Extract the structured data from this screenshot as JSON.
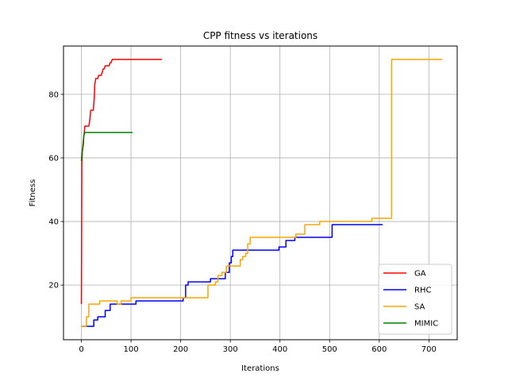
{
  "chart_data": {
    "type": "line",
    "title": "CPP fitness vs iterations",
    "xlabel": "Iterations",
    "ylabel": "Fitness",
    "xlim": [
      -36,
      757
    ],
    "ylim": [
      2.8,
      95.2
    ],
    "xticks": [
      0,
      100,
      200,
      300,
      400,
      500,
      600,
      700
    ],
    "yticks": [
      20,
      40,
      60,
      80
    ],
    "grid": true,
    "legend_position": "lower-right",
    "series": [
      {
        "name": "GA",
        "color": "#ff0000",
        "step": false,
        "points": [
          [
            0,
            14
          ],
          [
            1,
            58
          ],
          [
            2,
            62
          ],
          [
            3,
            63
          ],
          [
            4,
            64
          ],
          [
            5,
            67
          ],
          [
            6,
            68
          ],
          [
            7,
            70
          ],
          [
            15,
            70
          ],
          [
            17,
            72
          ],
          [
            19,
            75
          ],
          [
            24,
            75
          ],
          [
            26,
            79
          ],
          [
            27,
            83
          ],
          [
            29,
            85
          ],
          [
            33,
            85
          ],
          [
            35,
            86
          ],
          [
            40,
            86
          ],
          [
            42,
            87
          ],
          [
            44,
            88
          ],
          [
            46,
            88
          ],
          [
            48,
            89
          ],
          [
            56,
            89
          ],
          [
            58,
            90
          ],
          [
            60,
            90
          ],
          [
            62,
            91
          ],
          [
            162,
            91
          ]
        ]
      },
      {
        "name": "RHC",
        "color": "#0000ff",
        "step": true,
        "points": [
          [
            0,
            7
          ],
          [
            25,
            7
          ],
          [
            25,
            9
          ],
          [
            33,
            9
          ],
          [
            33,
            10
          ],
          [
            48,
            10
          ],
          [
            48,
            12
          ],
          [
            58,
            12
          ],
          [
            58,
            14
          ],
          [
            110,
            14
          ],
          [
            110,
            15
          ],
          [
            205,
            15
          ],
          [
            205,
            16
          ],
          [
            210,
            16
          ],
          [
            210,
            20
          ],
          [
            215,
            20
          ],
          [
            215,
            21
          ],
          [
            260,
            21
          ],
          [
            260,
            22
          ],
          [
            290,
            22
          ],
          [
            290,
            24
          ],
          [
            298,
            24
          ],
          [
            298,
            27
          ],
          [
            302,
            27
          ],
          [
            302,
            29
          ],
          [
            305,
            29
          ],
          [
            305,
            31
          ],
          [
            398,
            31
          ],
          [
            398,
            32
          ],
          [
            412,
            32
          ],
          [
            412,
            34
          ],
          [
            430,
            34
          ],
          [
            430,
            35
          ],
          [
            505,
            35
          ],
          [
            505,
            39
          ],
          [
            607,
            39
          ]
        ]
      },
      {
        "name": "SA",
        "color": "#ffa500",
        "step": true,
        "points": [
          [
            0,
            7
          ],
          [
            10,
            7
          ],
          [
            10,
            10
          ],
          [
            15,
            10
          ],
          [
            15,
            14
          ],
          [
            37,
            14
          ],
          [
            37,
            15
          ],
          [
            72,
            15
          ],
          [
            72,
            14
          ],
          [
            80,
            14
          ],
          [
            80,
            15
          ],
          [
            100,
            15
          ],
          [
            100,
            16
          ],
          [
            255,
            16
          ],
          [
            255,
            20
          ],
          [
            270,
            20
          ],
          [
            270,
            21
          ],
          [
            275,
            21
          ],
          [
            275,
            23
          ],
          [
            283,
            23
          ],
          [
            283,
            24
          ],
          [
            292,
            24
          ],
          [
            292,
            26
          ],
          [
            320,
            26
          ],
          [
            320,
            28
          ],
          [
            325,
            28
          ],
          [
            325,
            29
          ],
          [
            331,
            29
          ],
          [
            331,
            30
          ],
          [
            335,
            30
          ],
          [
            335,
            33
          ],
          [
            340,
            33
          ],
          [
            340,
            35
          ],
          [
            432,
            35
          ],
          [
            432,
            36
          ],
          [
            450,
            36
          ],
          [
            450,
            39
          ],
          [
            480,
            39
          ],
          [
            480,
            40
          ],
          [
            585,
            40
          ],
          [
            585,
            41
          ],
          [
            625,
            41
          ],
          [
            625,
            91
          ],
          [
            727,
            91
          ]
        ]
      },
      {
        "name": "MIMIC",
        "color": "#008000",
        "step": false,
        "points": [
          [
            0,
            59
          ],
          [
            1,
            61
          ],
          [
            3,
            64
          ],
          [
            5,
            67
          ],
          [
            7,
            68
          ],
          [
            103,
            68
          ]
        ]
      }
    ]
  }
}
